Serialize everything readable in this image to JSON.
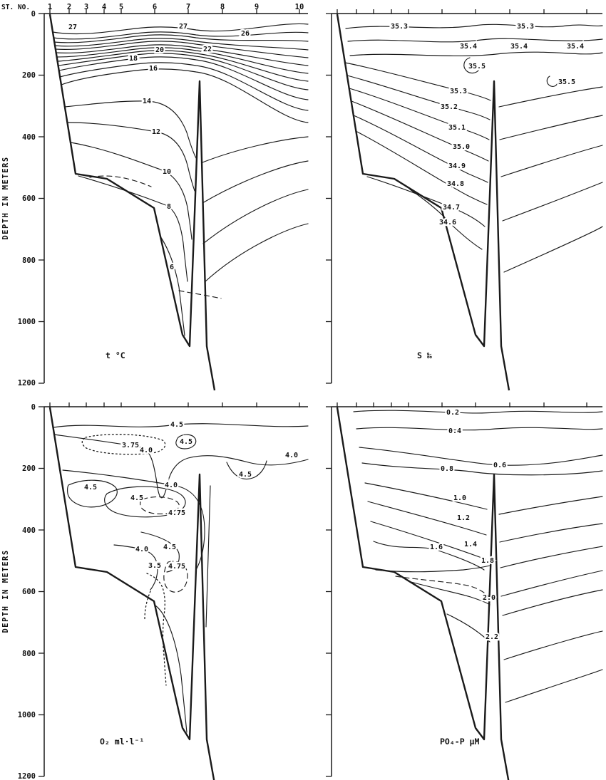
{
  "figure": {
    "background_color": "#ffffff",
    "line_color": "#1a1a1a"
  },
  "axes": {
    "station_label": "ST. NO.",
    "stations": [
      "1",
      "2",
      "3",
      "4",
      "5",
      "6",
      "7",
      "8",
      "9",
      "10"
    ],
    "depth_label": "DEPTH IN METERS",
    "depth_ticks": [
      "0",
      "200",
      "400",
      "600",
      "800",
      "1000",
      "1200"
    ]
  },
  "panels": {
    "temperature": {
      "title": "t °C",
      "labels": [
        "27",
        "27",
        "26",
        "22",
        "20",
        "18",
        "16",
        "14",
        "12",
        "10",
        "8",
        "6"
      ]
    },
    "salinity": {
      "title": "S ‰",
      "labels": [
        "35.3",
        "35.3",
        "35.4",
        "35.4",
        "35.4",
        "35.5",
        "35.5",
        "35.3",
        "35.2",
        "35.1",
        "35.0",
        "34.9",
        "34.8",
        "34.7",
        "34.6"
      ]
    },
    "oxygen": {
      "title": "O₂ ml·l⁻¹",
      "labels": [
        "4.5",
        "3.75",
        "4.0",
        "4.5",
        "4.0",
        "4.5",
        "4.0",
        "4.5",
        "4.5",
        "4.75",
        "4.5",
        "4.0",
        "4.75",
        "3.5"
      ]
    },
    "phosphate": {
      "title": "PO₄-P μM",
      "labels": [
        "0.2",
        "0.4",
        "0.6",
        "0.8",
        "1.0",
        "1.2",
        "1.4",
        "1.6",
        "1.8",
        "2.0",
        "2.2"
      ]
    }
  },
  "chart_data": [
    {
      "type": "heatmap",
      "subtype": "contour_section",
      "panel": "top-left",
      "title": "t °C",
      "variable": "temperature",
      "units": "°C",
      "x_axis": {
        "label": "ST. NO.",
        "stations": [
          1,
          2,
          3,
          4,
          5,
          6,
          7,
          8,
          9,
          10
        ]
      },
      "y_axis": {
        "label": "DEPTH IN METERS",
        "range": [
          0,
          1200
        ],
        "ticks": [
          0,
          200,
          400,
          600,
          800,
          1000,
          1200
        ]
      },
      "labeled_contours": [
        {
          "level": 27,
          "approx_depth_m": 50
        },
        {
          "level": 26,
          "approx_depth_m": 75
        },
        {
          "level": 22,
          "approx_depth_m": 120
        },
        {
          "level": 20,
          "approx_depth_m": 128
        },
        {
          "level": 18,
          "approx_depth_m": 148
        },
        {
          "level": 16,
          "approx_depth_m": 190
        },
        {
          "level": 14,
          "approx_depth_m": 285
        },
        {
          "level": 12,
          "approx_depth_m": 385
        },
        {
          "level": 10,
          "approx_depth_m": 515
        },
        {
          "level": 8,
          "approx_depth_m": 630
        },
        {
          "level": 6,
          "approx_depth_m": 815
        }
      ],
      "grid": false,
      "legend": false
    },
    {
      "type": "heatmap",
      "subtype": "contour_section",
      "panel": "top-right",
      "title": "S ‰",
      "variable": "salinity",
      "units": "‰",
      "x_axis": {
        "label": "ST. NO.",
        "stations": [
          1,
          2,
          3,
          4,
          5,
          6,
          7,
          8,
          9,
          10
        ]
      },
      "y_axis": {
        "label": "DEPTH IN METERS",
        "range": [
          0,
          1200
        ],
        "ticks": [
          0,
          200,
          400,
          600,
          800,
          1000,
          1200
        ]
      },
      "labeled_contours": [
        {
          "level": 35.3,
          "approx_depth_m": 30
        },
        {
          "level": 35.4,
          "approx_depth_m": 110
        },
        {
          "level": 35.5,
          "approx_depth_m": 170,
          "closed": true
        },
        {
          "level": 35.5,
          "approx_depth_m": 215,
          "closed": true
        },
        {
          "level": 35.3,
          "approx_depth_m": 260
        },
        {
          "level": 35.2,
          "approx_depth_m": 310
        },
        {
          "level": 35.1,
          "approx_depth_m": 375
        },
        {
          "level": 35.0,
          "approx_depth_m": 437
        },
        {
          "level": 34.9,
          "approx_depth_m": 497
        },
        {
          "level": 34.8,
          "approx_depth_m": 557
        },
        {
          "level": 34.7,
          "approx_depth_m": 630
        },
        {
          "level": 34.6,
          "approx_depth_m": 690
        }
      ],
      "grid": false,
      "legend": false
    },
    {
      "type": "heatmap",
      "subtype": "contour_section",
      "panel": "bottom-left",
      "title": "O₂ ml·l⁻¹",
      "variable": "dissolved_oxygen",
      "units": "ml/l",
      "x_axis": {
        "label": "ST. NO.",
        "stations": [
          1,
          2,
          3,
          4,
          5,
          6,
          7,
          8,
          9,
          10
        ]
      },
      "y_axis": {
        "label": "DEPTH IN METERS",
        "range": [
          0,
          1200
        ],
        "ticks": [
          0,
          200,
          400,
          600,
          800,
          1000,
          1200
        ]
      },
      "contour_levels": [
        3.5,
        3.75,
        4.0,
        4.5,
        4.75
      ],
      "labeled_contours": [
        {
          "level": 4.5,
          "approx_depth_m": 67
        },
        {
          "level": 3.75,
          "approx_depth_m": 127,
          "closed": true,
          "style": "dotted"
        },
        {
          "level": 4.0,
          "approx_depth_m": 150
        },
        {
          "level": 4.5,
          "approx_depth_m": 116,
          "closed": true
        },
        {
          "level": 4.0,
          "approx_depth_m": 165
        },
        {
          "level": 4.5,
          "approx_depth_m": 222
        },
        {
          "level": 4.0,
          "approx_depth_m": 257
        },
        {
          "level": 4.5,
          "approx_depth_m": 264,
          "closed": true
        },
        {
          "level": 4.5,
          "approx_depth_m": 300,
          "closed": true
        },
        {
          "level": 4.75,
          "approx_depth_m": 347,
          "closed": true,
          "style": "dashed"
        },
        {
          "level": 4.5,
          "approx_depth_m": 458
        },
        {
          "level": 4.0,
          "approx_depth_m": 465
        },
        {
          "level": 4.75,
          "approx_depth_m": 522,
          "closed": true,
          "style": "dashed"
        },
        {
          "level": 3.5,
          "approx_depth_m": 527,
          "style": "dotted"
        }
      ],
      "grid": false,
      "legend": false
    },
    {
      "type": "heatmap",
      "subtype": "contour_section",
      "panel": "bottom-right",
      "title": "PO₄-P μM",
      "variable": "phosphate",
      "units": "μM",
      "x_axis": {
        "label": "ST. NO.",
        "stations": [
          1,
          2,
          3,
          4,
          5,
          6,
          7,
          8,
          9,
          10
        ]
      },
      "y_axis": {
        "label": "DEPTH IN METERS",
        "range": [
          0,
          1200
        ],
        "ticks": [
          0,
          200,
          400,
          600,
          800,
          1000,
          1200
        ]
      },
      "labeled_contours": [
        {
          "level": 0.2,
          "approx_depth_m": 25
        },
        {
          "level": 0.4,
          "approx_depth_m": 85
        },
        {
          "level": 0.6,
          "approx_depth_m": 192
        },
        {
          "level": 0.8,
          "approx_depth_m": 203
        },
        {
          "level": 1.0,
          "approx_depth_m": 298
        },
        {
          "level": 1.2,
          "approx_depth_m": 363
        },
        {
          "level": 1.4,
          "approx_depth_m": 449
        },
        {
          "level": 1.6,
          "approx_depth_m": 465
        },
        {
          "level": 1.8,
          "approx_depth_m": 513
        },
        {
          "level": 2.0,
          "approx_depth_m": 629
        },
        {
          "level": 2.2,
          "approx_depth_m": 756
        }
      ],
      "grid": false,
      "legend": false
    }
  ]
}
